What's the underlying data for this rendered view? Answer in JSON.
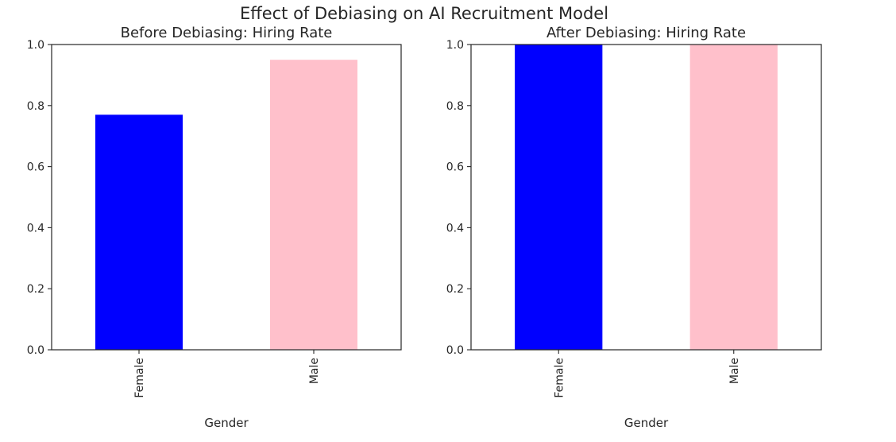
{
  "figure": {
    "suptitle": "Effect of Debiasing on AI Recruitment Model"
  },
  "chart_data": [
    {
      "type": "bar",
      "title": "Before Debiasing: Hiring Rate",
      "xlabel": "Gender",
      "ylabel": "",
      "categories": [
        "Female",
        "Male"
      ],
      "values": [
        0.77,
        0.95
      ],
      "colors": [
        "#0000ff",
        "#ffc0cb"
      ],
      "ylim": [
        0,
        1.0
      ],
      "yticks": [
        "0.0",
        "0.2",
        "0.4",
        "0.6",
        "0.8",
        "1.0"
      ],
      "grid": false,
      "legend": "none"
    },
    {
      "type": "bar",
      "title": "After Debiasing: Hiring Rate",
      "xlabel": "Gender",
      "ylabel": "",
      "categories": [
        "Female",
        "Male"
      ],
      "values": [
        1.0,
        1.0
      ],
      "colors": [
        "#0000ff",
        "#ffc0cb"
      ],
      "ylim": [
        0,
        1.0
      ],
      "yticks": [
        "0.0",
        "0.2",
        "0.4",
        "0.6",
        "0.8",
        "1.0"
      ],
      "grid": false,
      "legend": "none"
    }
  ]
}
